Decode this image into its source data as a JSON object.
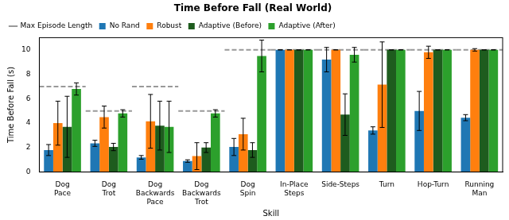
{
  "chart_data": {
    "type": "bar",
    "title": "Time Before Fall (Real World)",
    "x_label": "Skill",
    "y_label": "Time Before Fall (s)",
    "categories": [
      "Dog Pace",
      "Dog Trot",
      "Dog Backwards Pace",
      "Dog Backwards Trot",
      "Dog Spin",
      "In-Place Steps",
      "Side-Steps",
      "Turn",
      "Hop-Turn",
      "Running Man"
    ],
    "max_episode_length": {
      "name": "Max Episode Length",
      "color": "#999999",
      "line_style": "dashed",
      "values": [
        7,
        5,
        7,
        5,
        10,
        10,
        10,
        10,
        10,
        10
      ]
    },
    "series": [
      {
        "name": "No Rand",
        "color": "#1f77b4",
        "values": [
          1.8,
          2.35,
          1.2,
          0.9,
          2.05,
          10,
          9.2,
          3.4,
          5.0,
          4.45
        ],
        "errors": [
          0.45,
          0.25,
          0.15,
          0.1,
          0.7,
          0,
          1.0,
          0.3,
          1.6,
          0.25
        ]
      },
      {
        "name": "Robust",
        "color": "#ff7f0e",
        "values": [
          4.0,
          4.5,
          4.15,
          1.3,
          3.1,
          10,
          10,
          7.15,
          9.8,
          10
        ],
        "errors": [
          1.8,
          0.9,
          2.2,
          1.1,
          1.3,
          0,
          0,
          3.5,
          0.5,
          0.1
        ]
      },
      {
        "name": "Adaptive (Before)",
        "color": "#1e5c1e",
        "values": [
          3.7,
          2.05,
          3.8,
          2.0,
          1.8,
          10,
          4.7,
          10,
          10,
          10
        ],
        "errors": [
          2.5,
          0.3,
          2.0,
          0.4,
          0.6,
          0,
          1.7,
          0,
          0,
          0
        ]
      },
      {
        "name": "Adaptive (After)",
        "color": "#2ca02c",
        "values": [
          6.8,
          4.8,
          3.7,
          4.8,
          9.5,
          10,
          9.6,
          10,
          10,
          10
        ],
        "errors": [
          0.5,
          0.3,
          2.1,
          0.3,
          1.3,
          0,
          0.6,
          0,
          0,
          0
        ]
      }
    ],
    "ylim": [
      0,
      11
    ],
    "yticks": [
      0,
      2,
      4,
      6,
      8,
      10
    ],
    "grid": false,
    "legend": "upper left"
  }
}
